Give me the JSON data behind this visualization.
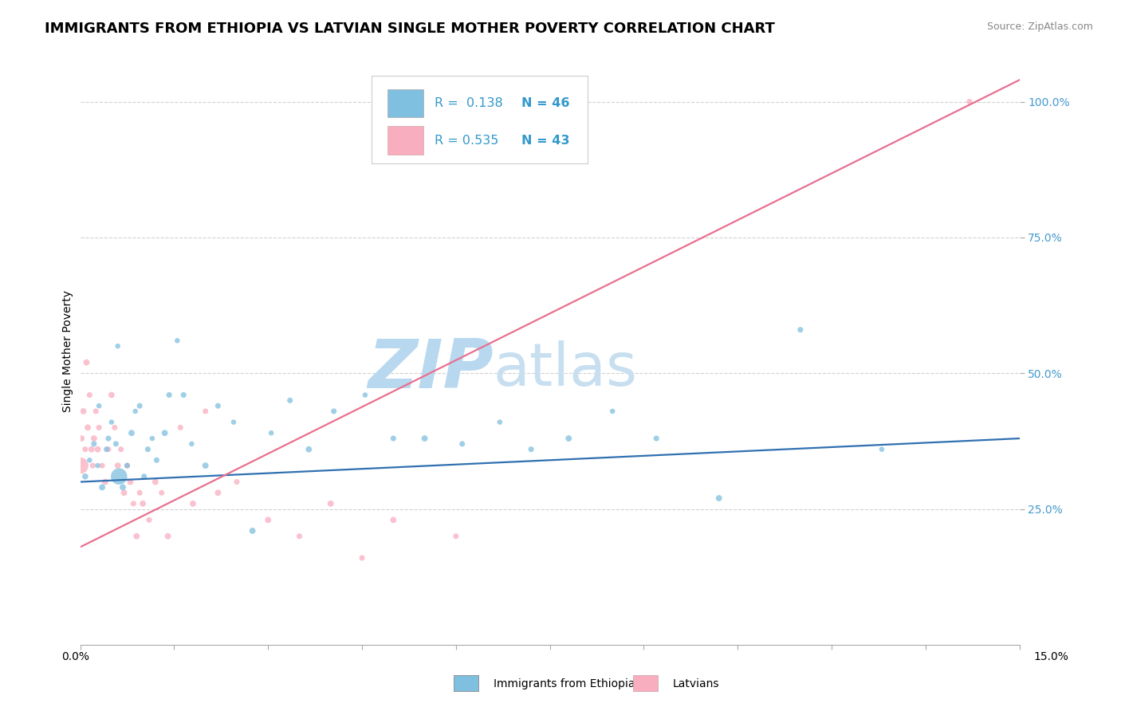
{
  "title": "IMMIGRANTS FROM ETHIOPIA VS LATVIAN SINGLE MOTHER POVERTY CORRELATION CHART",
  "source": "Source: ZipAtlas.com",
  "ylabel": "Single Mother Poverty",
  "xmin": 0.0,
  "xmax": 15.0,
  "ymin": 0.0,
  "ymax": 108.0,
  "ytick_vals": [
    25,
    50,
    75,
    100
  ],
  "legend_r1": "R =  0.138",
  "legend_n1": "N = 46",
  "legend_r2": "R = 0.535",
  "legend_n2": "N = 43",
  "legend_label1": "Immigrants from Ethiopia",
  "legend_label2": "Latvians",
  "color_blue": "#7fbfdf",
  "color_pink": "#f9aec0",
  "color_blue_line": "#3070b0",
  "color_pink_line": "#e87090",
  "watermark": "ZIPatlas",
  "watermark_color": "#c8dff0",
  "title_fontsize": 13,
  "blue_line_x": [
    0,
    15
  ],
  "blue_line_y": [
    30,
    38
  ],
  "pink_line_x": [
    0,
    15
  ],
  "pink_line_y": [
    18,
    104
  ],
  "blue_scatter_x": [
    0.08,
    0.15,
    0.22,
    0.28,
    0.35,
    0.42,
    0.5,
    0.57,
    0.62,
    0.68,
    0.75,
    0.82,
    0.88,
    0.95,
    1.02,
    1.08,
    1.15,
    1.22,
    1.35,
    1.42,
    1.55,
    1.65,
    1.78,
    2.0,
    2.2,
    2.45,
    2.75,
    3.05,
    3.35,
    3.65,
    4.05,
    4.55,
    5.0,
    5.5,
    6.1,
    6.7,
    7.2,
    7.8,
    8.5,
    9.2,
    10.2,
    11.5,
    12.8,
    0.6,
    0.3,
    0.45
  ],
  "blue_scatter_y": [
    31,
    34,
    37,
    33,
    29,
    36,
    41,
    37,
    31,
    29,
    33,
    39,
    43,
    44,
    31,
    36,
    38,
    34,
    39,
    46,
    56,
    46,
    37,
    33,
    44,
    41,
    21,
    39,
    45,
    36,
    43,
    46,
    38,
    38,
    37,
    41,
    36,
    38,
    43,
    38,
    27,
    58,
    36,
    55,
    44,
    38
  ],
  "blue_scatter_size": [
    30,
    22,
    26,
    22,
    32,
    26,
    22,
    26,
    220,
    32,
    26,
    32,
    22,
    26,
    26,
    26,
    22,
    26,
    32,
    26,
    22,
    26,
    22,
    32,
    26,
    22,
    32,
    22,
    26,
    32,
    26,
    22,
    26,
    32,
    26,
    22,
    26,
    32,
    22,
    26,
    32,
    26,
    22,
    22,
    22,
    26
  ],
  "pink_scatter_x": [
    0.0,
    0.02,
    0.05,
    0.08,
    0.1,
    0.12,
    0.15,
    0.18,
    0.2,
    0.22,
    0.25,
    0.28,
    0.3,
    0.35,
    0.4,
    0.45,
    0.5,
    0.55,
    0.6,
    0.65,
    0.7,
    0.75,
    0.8,
    0.85,
    0.9,
    0.95,
    1.0,
    1.1,
    1.2,
    1.3,
    1.4,
    1.6,
    1.8,
    2.0,
    2.2,
    2.5,
    3.0,
    3.5,
    4.0,
    4.5,
    5.0,
    6.0,
    14.2
  ],
  "pink_scatter_y": [
    33,
    38,
    43,
    36,
    52,
    40,
    46,
    36,
    33,
    38,
    43,
    36,
    40,
    33,
    30,
    36,
    46,
    40,
    33,
    36,
    28,
    33,
    30,
    26,
    20,
    28,
    26,
    23,
    30,
    28,
    20,
    40,
    26,
    43,
    28,
    30,
    23,
    20,
    26,
    16,
    23,
    20,
    100
  ],
  "pink_scatter_size": [
    220,
    32,
    32,
    26,
    32,
    32,
    26,
    32,
    26,
    32,
    26,
    32,
    26,
    26,
    32,
    26,
    32,
    26,
    32,
    26,
    32,
    26,
    32,
    26,
    32,
    26,
    32,
    26,
    32,
    26,
    32,
    26,
    32,
    26,
    32,
    26,
    32,
    26,
    32,
    26,
    32,
    26,
    26
  ]
}
